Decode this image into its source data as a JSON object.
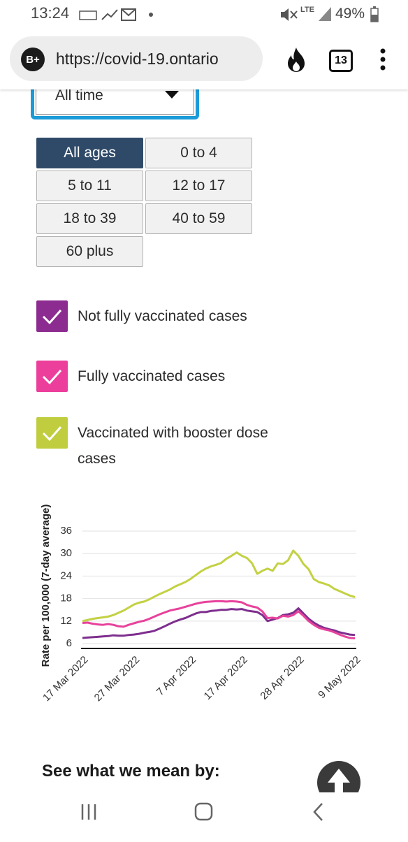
{
  "status": {
    "time": "13:24",
    "network": "LTE",
    "battery": "49%"
  },
  "browser": {
    "badge": "B+",
    "url": "https://covid-19.ontario",
    "tabs": "13"
  },
  "dropdown": {
    "value": "All time"
  },
  "age_buttons": {
    "selected": 0,
    "items": [
      "All ages",
      "0 to 4",
      "5 to 11",
      "12 to 17",
      "18 to 39",
      "40 to 59",
      "60 plus"
    ]
  },
  "checkboxes": [
    {
      "label": "Not fully vaccinated cases",
      "color": "#8c2c90"
    },
    {
      "label": "Fully vaccinated cases",
      "color": "#ec3f9c"
    },
    {
      "label": "Vaccinated with booster dose cases",
      "color": "#bfcd3f"
    }
  ],
  "chart_data": {
    "type": "line",
    "y_label": "Rate per 100,000 (7-day average)",
    "categories": [
      "17 Mar 2022",
      null,
      null,
      null,
      null,
      null,
      null,
      null,
      null,
      null,
      "27 Mar 2022",
      null,
      null,
      null,
      null,
      null,
      null,
      null,
      null,
      null,
      null,
      "7 Apr 2022",
      null,
      null,
      null,
      null,
      null,
      null,
      null,
      null,
      null,
      "17 Apr 2022",
      null,
      null,
      null,
      null,
      null,
      null,
      null,
      null,
      null,
      null,
      "28 Apr 2022",
      null,
      null,
      null,
      null,
      null,
      null,
      null,
      null,
      null,
      null,
      "9 May 2022"
    ],
    "series": [
      {
        "name": "Not fully vaccinated cases",
        "color": "#7e2f8e",
        "values": [
          7.5,
          7.6,
          7.7,
          7.8,
          7.9,
          8.0,
          8.2,
          8.1,
          8.1,
          8.3,
          8.4,
          8.6,
          8.9,
          9.1,
          9.4,
          10.0,
          10.6,
          11.3,
          11.9,
          12.4,
          12.8,
          13.4,
          14.0,
          14.4,
          14.4,
          14.7,
          14.8,
          15.0,
          15.0,
          15.2,
          15.1,
          15.2,
          14.8,
          14.6,
          14.4,
          13.6,
          12.0,
          12.4,
          12.8,
          13.6,
          13.8,
          14.2,
          15.4,
          14.0,
          12.6,
          11.6,
          10.8,
          10.2,
          9.8,
          9.5,
          9.0,
          8.7,
          8.4,
          8.3
        ]
      },
      {
        "name": "Fully vaccinated cases",
        "color": "#e8429b",
        "values": [
          11.5,
          11.6,
          11.3,
          11.1,
          11.0,
          11.2,
          11.0,
          10.6,
          10.5,
          11.0,
          11.4,
          11.8,
          12.1,
          12.6,
          13.2,
          13.8,
          14.3,
          14.8,
          15.1,
          15.4,
          15.8,
          16.2,
          16.6,
          16.9,
          17.1,
          17.2,
          17.3,
          17.3,
          17.2,
          17.3,
          17.2,
          17.0,
          16.3,
          15.9,
          15.6,
          14.6,
          12.8,
          12.9,
          12.7,
          13.4,
          13.2,
          13.6,
          14.6,
          13.4,
          12.0,
          11.0,
          10.2,
          9.8,
          9.5,
          9.0,
          8.4,
          7.9,
          7.5,
          7.4
        ]
      },
      {
        "name": "Vaccinated with booster dose cases",
        "color": "#c3d143",
        "values": [
          12.0,
          12.3,
          12.6,
          12.8,
          13.0,
          13.2,
          13.6,
          14.2,
          14.8,
          15.6,
          16.4,
          16.9,
          17.2,
          17.8,
          18.5,
          19.2,
          19.8,
          20.4,
          21.2,
          21.8,
          22.4,
          23.2,
          24.2,
          25.2,
          26.0,
          26.6,
          27.0,
          27.5,
          28.6,
          29.4,
          30.3,
          29.4,
          28.8,
          27.4,
          24.6,
          25.4,
          26.0,
          25.4,
          27.4,
          27.2,
          28.2,
          30.8,
          29.4,
          27.2,
          25.8,
          23.2,
          22.4,
          22.0,
          21.5,
          20.6,
          20.0,
          19.4,
          18.8,
          18.4
        ]
      }
    ],
    "ylim": [
      4.7,
      36
    ],
    "yticks": [
      6,
      12,
      18,
      24,
      30,
      36
    ],
    "grid": true
  },
  "footer": {
    "heading": "See what we mean by:"
  }
}
